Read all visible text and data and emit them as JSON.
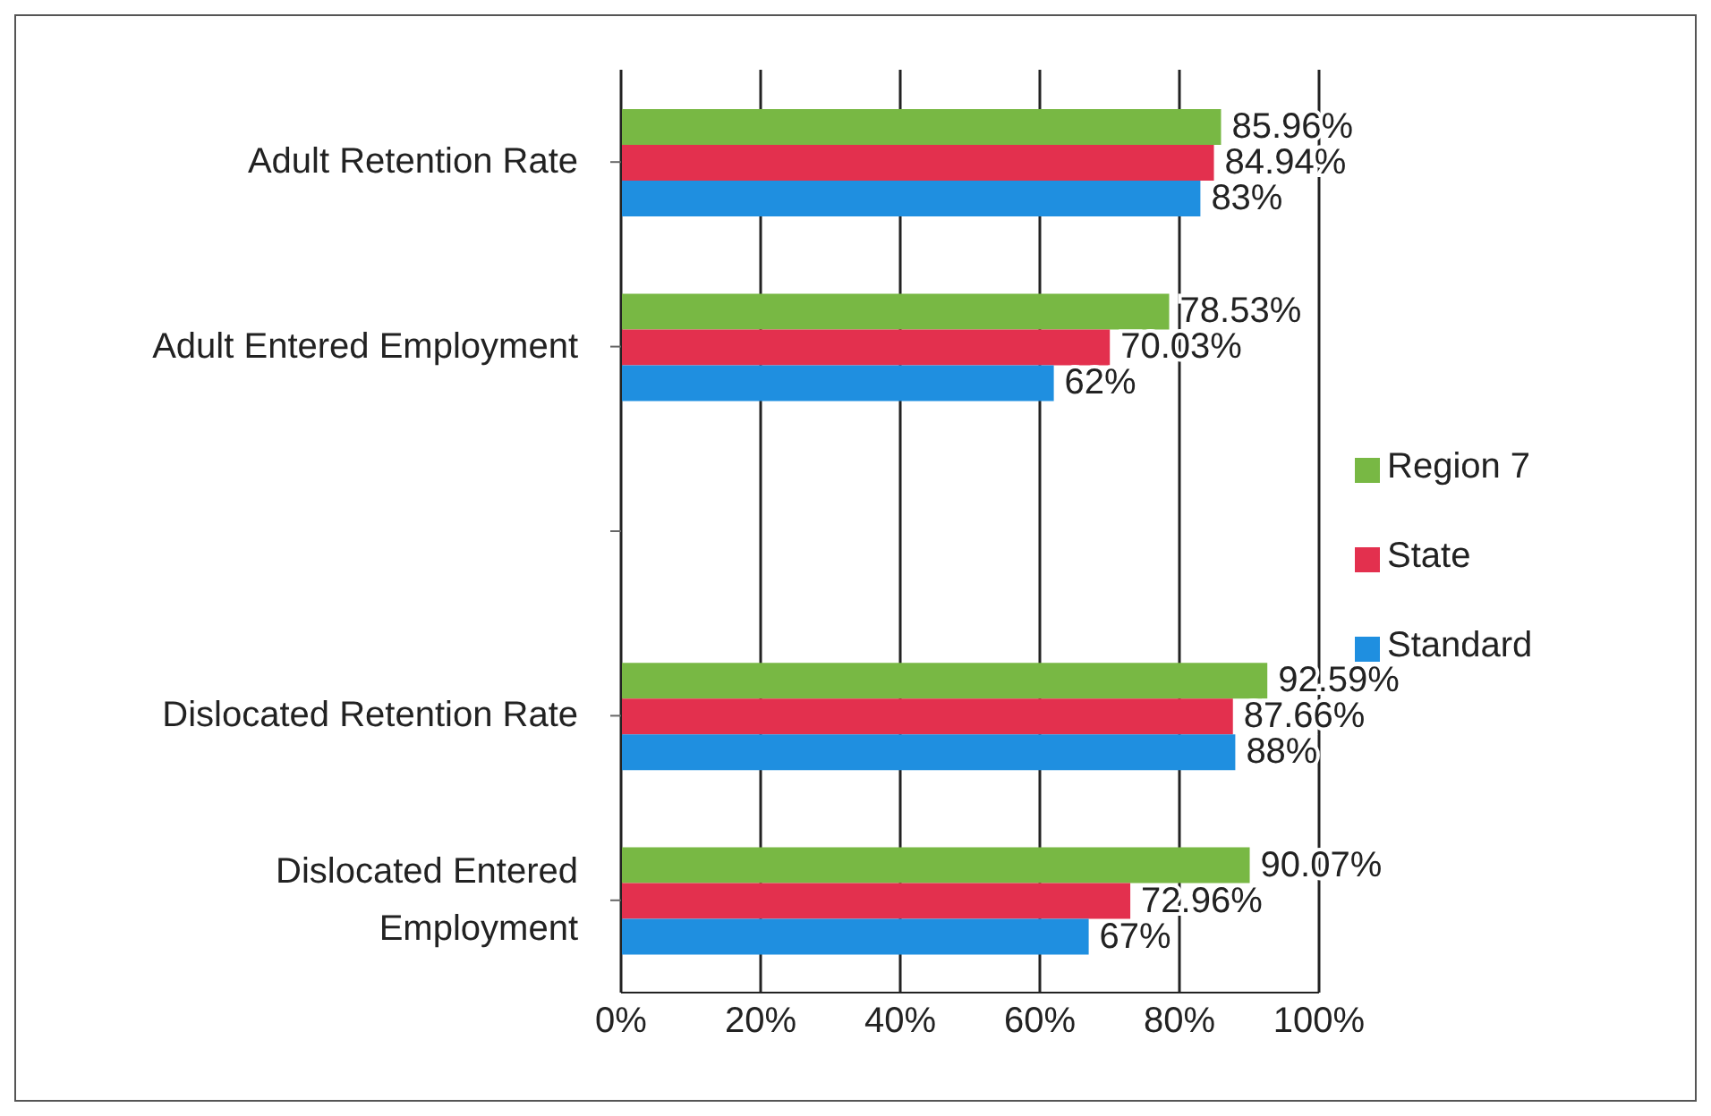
{
  "chart_data": {
    "type": "bar",
    "orientation": "horizontal",
    "categories": [
      "Adult Retention Rate",
      "Adult Entered Employment",
      null,
      "Dislocated Retention Rate",
      "Dislocated Entered Employment"
    ],
    "series": [
      {
        "name": "Region 7",
        "color": "#78b844",
        "values": [
          85.96,
          78.53,
          null,
          92.59,
          90.07
        ],
        "value_labels": [
          "85.96%",
          "78.53%",
          null,
          "92.59%",
          "90.07%"
        ]
      },
      {
        "name": "State",
        "color": "#e3304e",
        "values": [
          84.94,
          70.03,
          null,
          87.66,
          72.96
        ],
        "value_labels": [
          "84.94%",
          "70.03%",
          null,
          "87.66%",
          "72.96%"
        ]
      },
      {
        "name": "Standard",
        "color": "#1f8fe0",
        "values": [
          83,
          62,
          null,
          88,
          67
        ],
        "value_labels": [
          "83%",
          "62%",
          null,
          "88%",
          "67%"
        ]
      }
    ],
    "xlim": [
      0,
      100
    ],
    "xticks": [
      {
        "value": 0,
        "label": "0%"
      },
      {
        "value": 20,
        "label": "20%"
      },
      {
        "value": 40,
        "label": "40%"
      },
      {
        "value": 60,
        "label": "60%"
      },
      {
        "value": 80,
        "label": "80%"
      },
      {
        "value": 100,
        "label": "100%"
      }
    ],
    "grid": "x",
    "legend": "right"
  }
}
